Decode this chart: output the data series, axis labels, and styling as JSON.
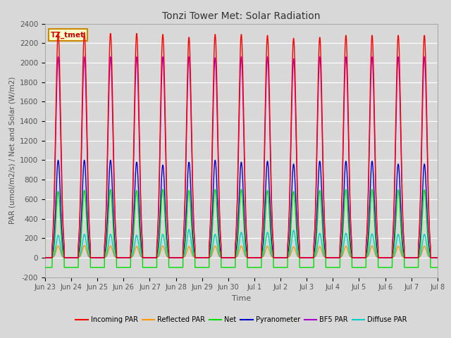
{
  "title": "Tonzi Tower Met: Solar Radiation",
  "ylabel": "PAR (umol/m2/s) / Net and Solar (W/m2)",
  "xlabel": "Time",
  "ylim": [
    -200,
    2400
  ],
  "yticks": [
    -200,
    0,
    200,
    400,
    600,
    800,
    1000,
    1200,
    1400,
    1600,
    1800,
    2000,
    2200,
    2400
  ],
  "background_color": "#d8d8d8",
  "plot_bg_color": "#d8d8d8",
  "grid_color": "#ffffff",
  "label_color": "#555555",
  "title_color": "#333333",
  "dataset_label": "TZ_tmet",
  "dataset_label_bg": "#ffffcc",
  "dataset_label_border": "#cc8800",
  "series": [
    {
      "name": "Incoming PAR",
      "color": "#ff0000"
    },
    {
      "name": "Reflected PAR",
      "color": "#ff9900"
    },
    {
      "name": "Net",
      "color": "#00dd00"
    },
    {
      "name": "Pyranometer",
      "color": "#0000cc"
    },
    {
      "name": "BF5 PAR",
      "color": "#aa00cc"
    },
    {
      "name": "Diffuse PAR",
      "color": "#00cccc"
    }
  ],
  "n_days": 15,
  "peaks": {
    "incoming_par": [
      2310,
      2310,
      2300,
      2300,
      2290,
      2260,
      2290,
      2290,
      2280,
      2250,
      2260,
      2280,
      2280,
      2280,
      2280
    ],
    "reflected_par": [
      120,
      125,
      120,
      115,
      120,
      115,
      120,
      120,
      118,
      112,
      115,
      118,
      120,
      118,
      118
    ],
    "net": [
      680,
      690,
      700,
      690,
      700,
      690,
      700,
      700,
      690,
      680,
      690,
      700,
      700,
      695,
      695
    ],
    "pyranometer": [
      1000,
      1000,
      1000,
      980,
      950,
      980,
      1000,
      980,
      990,
      960,
      990,
      990,
      990,
      960,
      960
    ],
    "bf5_par": [
      2060,
      2060,
      2060,
      2060,
      2060,
      2060,
      2050,
      2060,
      2060,
      2040,
      2060,
      2060,
      2060,
      2060,
      2060
    ],
    "diffuse_par": [
      230,
      240,
      240,
      230,
      240,
      290,
      240,
      260,
      260,
      280,
      250,
      250,
      245,
      240,
      240
    ]
  },
  "tick_labels": [
    "Jun 23",
    "Jun 24",
    "Jun 25",
    "Jun 26",
    "Jun 27",
    "Jun 28",
    "Jun 29",
    "Jun 30",
    "Jul 1",
    "Jul 2",
    "Jul 3",
    "Jul 4",
    "Jul 5",
    "Jul 6",
    "Jul 7",
    "Jul 8"
  ],
  "points_per_day": 288
}
